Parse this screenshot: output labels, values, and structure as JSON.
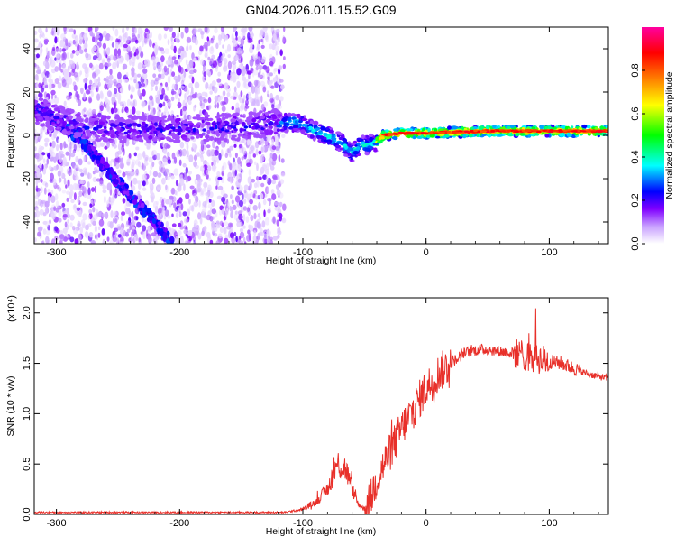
{
  "title": "GN04.2026.011.15.52.G09",
  "chart_data": [
    {
      "type": "heatmap",
      "title": "GN04.2026.011.15.52.G09",
      "xlabel": "Height of straight line (km)",
      "ylabel": "Frequency (Hz)",
      "xlim": [
        -318,
        148
      ],
      "ylim": [
        -50,
        50
      ],
      "xticks": [
        -300,
        -200,
        -100,
        0,
        100
      ],
      "yticks": [
        -40,
        -20,
        0,
        20,
        40
      ],
      "colorbar": {
        "label": "Normalized spectral amplitude",
        "range": [
          0,
          1
        ],
        "ticks": [
          "0.0",
          "0.2",
          "0.4",
          "0.6",
          "0.8"
        ],
        "colors": [
          "#ffffff",
          "#c8a0ff",
          "#8000ff",
          "#0000ff",
          "#00ffff",
          "#00ff00",
          "#ffff00",
          "#ff8000",
          "#ff0000",
          "#ff00a0"
        ]
      },
      "features": {
        "noise_region_x": [
          -318,
          -115
        ],
        "descending_branch": [
          [
            -318,
            12
          ],
          [
            -300,
            7
          ],
          [
            -280,
            -2
          ],
          [
            -260,
            -15
          ],
          [
            -240,
            -28
          ],
          [
            -220,
            -40
          ],
          [
            -205,
            -50
          ]
        ],
        "main_trace": [
          [
            -318,
            12
          ],
          [
            -300,
            8
          ],
          [
            -280,
            4
          ],
          [
            -250,
            3
          ],
          [
            -200,
            3
          ],
          [
            -150,
            4
          ],
          [
            -120,
            6
          ],
          [
            -110,
            6
          ],
          [
            -100,
            5
          ],
          [
            -90,
            2
          ],
          [
            -80,
            0
          ],
          [
            -70,
            -3
          ],
          [
            -60,
            -8
          ],
          [
            -55,
            -5
          ],
          [
            -45,
            -4
          ],
          [
            -40,
            -3
          ],
          [
            -35,
            0
          ],
          [
            -20,
            1
          ],
          [
            0,
            1
          ],
          [
            50,
            2
          ],
          [
            100,
            2
          ],
          [
            148,
            2
          ]
        ]
      }
    },
    {
      "type": "line",
      "xlabel": "Height of straight line (km)",
      "ylabel": "SNR (10 * v/v)",
      "y_multiplier": "(x10⁴)",
      "xlim": [
        -318,
        148
      ],
      "ylim": [
        0,
        2.15
      ],
      "xticks": [
        -300,
        -200,
        -100,
        0,
        100
      ],
      "yticks": [
        "0.0",
        "0.5",
        "1.0",
        "1.5",
        "2.0"
      ],
      "color": "#e8302a",
      "points": [
        [
          -318,
          0.02
        ],
        [
          -200,
          0.02
        ],
        [
          -115,
          0.02
        ],
        [
          -100,
          0.05
        ],
        [
          -90,
          0.12
        ],
        [
          -80,
          0.25
        ],
        [
          -72,
          0.5
        ],
        [
          -65,
          0.45
        ],
        [
          -60,
          0.25
        ],
        [
          -55,
          0.1
        ],
        [
          -50,
          0.05
        ],
        [
          -45,
          0.15
        ],
        [
          -40,
          0.35
        ],
        [
          -30,
          0.6
        ],
        [
          -20,
          0.85
        ],
        [
          -10,
          1.05
        ],
        [
          0,
          1.25
        ],
        [
          10,
          1.4
        ],
        [
          20,
          1.5
        ],
        [
          30,
          1.6
        ],
        [
          40,
          1.63
        ],
        [
          50,
          1.64
        ],
        [
          60,
          1.62
        ],
        [
          70,
          1.6
        ],
        [
          80,
          1.58
        ],
        [
          90,
          1.55
        ],
        [
          100,
          1.52
        ],
        [
          110,
          1.5
        ],
        [
          120,
          1.45
        ],
        [
          130,
          1.4
        ],
        [
          140,
          1.37
        ],
        [
          148,
          1.35
        ]
      ]
    }
  ]
}
